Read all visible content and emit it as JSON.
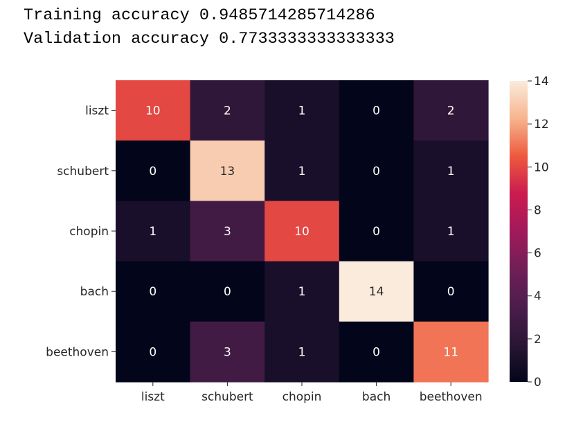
{
  "output": {
    "training_label": "Training accuracy",
    "training_value": "0.9485714285714286",
    "validation_label": "Validation accuracy",
    "validation_value": "0.7733333333333333"
  },
  "chart_data": {
    "type": "heatmap",
    "title": "",
    "xlabel": "",
    "ylabel": "",
    "x_categories": [
      "liszt",
      "schubert",
      "chopin",
      "bach",
      "beethoven"
    ],
    "y_categories": [
      "liszt",
      "schubert",
      "chopin",
      "bach",
      "beethoven"
    ],
    "values": [
      [
        10,
        2,
        1,
        0,
        2
      ],
      [
        0,
        13,
        1,
        0,
        1
      ],
      [
        1,
        3,
        10,
        0,
        1
      ],
      [
        0,
        0,
        1,
        14,
        0
      ],
      [
        0,
        3,
        1,
        0,
        11
      ]
    ],
    "annotated": true,
    "colormap": "rocket",
    "color_range": [
      0,
      14
    ],
    "colorbar": {
      "ticks": [
        0,
        2,
        4,
        6,
        8,
        10,
        12,
        14
      ],
      "placement": "right"
    },
    "grid": false
  }
}
